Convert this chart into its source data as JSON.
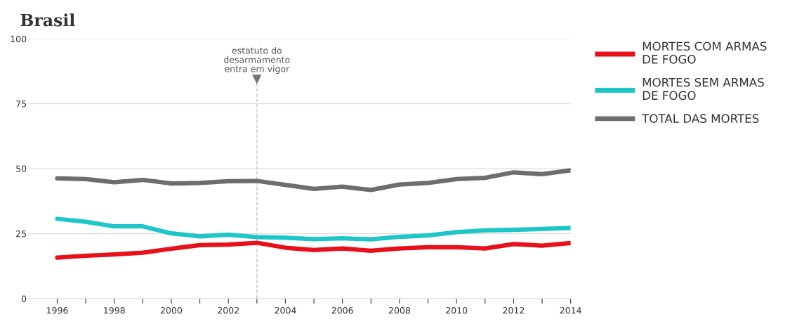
{
  "chart_data": {
    "type": "line",
    "title": "Brasil",
    "x": [
      1996,
      1997,
      1998,
      1999,
      2000,
      2001,
      2002,
      2003,
      2004,
      2005,
      2006,
      2007,
      2008,
      2009,
      2010,
      2011,
      2012,
      2013,
      2014
    ],
    "series": [
      {
        "name": "MORTES COM ARMAS DE FOGO",
        "color": "#e8101a",
        "values": [
          15.8,
          16.5,
          17.0,
          17.7,
          19.2,
          20.6,
          20.8,
          21.5,
          19.6,
          18.7,
          19.3,
          18.4,
          19.3,
          19.8,
          19.8,
          19.3,
          21.0,
          20.4,
          21.4
        ]
      },
      {
        "name": "MORTES SEM ARMAS DE FOGO",
        "color": "#1ec6c9",
        "values": [
          30.7,
          29.6,
          27.8,
          27.8,
          25.1,
          24.0,
          24.6,
          23.7,
          23.4,
          22.9,
          23.2,
          22.8,
          23.8,
          24.3,
          25.6,
          26.3,
          26.5,
          26.8,
          27.2
        ]
      },
      {
        "name": "TOTAL DAS MORTES",
        "color": "#6d6d6d",
        "values": [
          46.3,
          46.0,
          44.8,
          45.7,
          44.3,
          44.5,
          45.2,
          45.3,
          43.8,
          42.2,
          43.1,
          41.8,
          43.9,
          44.5,
          46.0,
          46.5,
          48.6,
          47.9,
          49.4
        ]
      }
    ],
    "xlim": [
      1995,
      2014
    ],
    "xticks": [
      1996,
      {
        "value": 1997,
        "label": null
      },
      1998,
      {
        "value": 1999,
        "label": null
      },
      2000,
      {
        "value": 2001,
        "label": null
      },
      2002,
      {
        "value": 2003,
        "label": null
      },
      2004,
      {
        "value": 2005,
        "label": null
      },
      2006,
      {
        "value": 2007,
        "label": null
      },
      2008,
      {
        "value": 2009,
        "label": null
      },
      2010,
      {
        "value": 2011,
        "label": null
      },
      2012,
      {
        "value": 2013,
        "label": null
      },
      2014
    ],
    "ylim": [
      0,
      100
    ],
    "yticks": [
      0,
      25,
      50,
      75,
      100
    ],
    "ref_lines": [
      {
        "axis": "x",
        "value": 2003,
        "label": "estatuto do\ndesarmamento\nentra em vigor",
        "color": "#c8c8c8",
        "line_style": "dashed"
      }
    ],
    "grid": "y",
    "legend": "right",
    "marker": "none",
    "line_style": "solid"
  }
}
